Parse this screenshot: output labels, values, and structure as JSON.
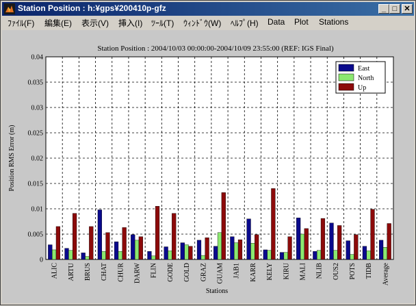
{
  "window": {
    "title": "Station Position : h:¥gps¥200410p-gfz",
    "minimize_label": "_",
    "maximize_label": "□",
    "close_label": "✕"
  },
  "menu": {
    "items": [
      {
        "label": "ﾌｧｲﾙ(F)"
      },
      {
        "label": "編集(E)"
      },
      {
        "label": "表示(V)"
      },
      {
        "label": "挿入(I)"
      },
      {
        "label": "ﾂｰﾙ(T)"
      },
      {
        "label": "ｳｨﾝﾄﾞｳ(W)"
      },
      {
        "label": "ﾍﾙﾌﾟ(H)"
      },
      {
        "label": "Data"
      },
      {
        "label": "Plot"
      },
      {
        "label": "Stations"
      }
    ]
  },
  "colors": {
    "east": "#0a0a8c",
    "north": "#8ce870",
    "up": "#8c0a0a"
  },
  "chart_data": {
    "type": "bar",
    "title": "Station Position : 2004/10/03 00:00:00-2004/10/09 23:55:00 (REF: IGS Final)",
    "xlabel": "Stations",
    "ylabel": "Position RMS Error (m)",
    "ylim": [
      0,
      0.04
    ],
    "yticks": [
      "0",
      "0.005",
      "0.01",
      "0.015",
      "0.02",
      "0.025",
      "0.03",
      "0.035",
      "0.04"
    ],
    "grid": true,
    "legend_position": "top-right",
    "categories": [
      "ALIC",
      "ARTU",
      "BRUS",
      "CHAT",
      "CHUR",
      "DARW",
      "FLIN",
      "GODE",
      "GOLD",
      "GRAZ",
      "GUAM",
      "JAB1",
      "KARR",
      "KELY",
      "KIRU",
      "MALI",
      "NLIB",
      "OUS2",
      "POTS",
      "TIDB",
      "Average"
    ],
    "series": [
      {
        "name": "East",
        "values": [
          0.0029,
          0.0022,
          0.0013,
          0.0098,
          0.0035,
          0.0049,
          0.0016,
          0.0025,
          0.0033,
          0.0038,
          0.0026,
          0.0045,
          0.008,
          0.0019,
          0.0014,
          0.0082,
          0.0016,
          0.0072,
          0.0037,
          0.0026,
          0.0038
        ]
      },
      {
        "name": "North",
        "values": [
          0.0019,
          0.0018,
          0.0006,
          0.0016,
          0.0016,
          0.0038,
          0.0007,
          0.0017,
          0.0029,
          0.0008,
          0.0053,
          0.0033,
          0.0032,
          0.0018,
          0.0014,
          0.005,
          0.0018,
          0.0018,
          0.001,
          0.0017,
          0.0024
        ]
      },
      {
        "name": "Up",
        "values": [
          0.0065,
          0.0091,
          0.0065,
          0.0053,
          0.0063,
          0.0045,
          0.0105,
          0.0091,
          0.0026,
          0.0043,
          0.0132,
          0.0039,
          0.0049,
          0.014,
          0.0045,
          0.0061,
          0.0081,
          0.0067,
          0.0049,
          0.0099,
          0.0071
        ]
      }
    ]
  }
}
